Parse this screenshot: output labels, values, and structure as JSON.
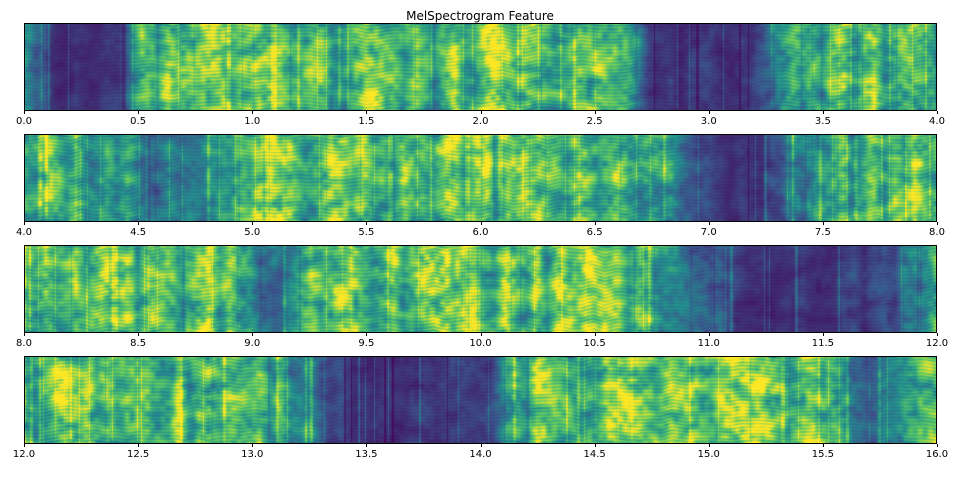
{
  "figure": {
    "title": "MelSpectrogram Feature",
    "background_color": "#ffffff",
    "axis_color": "#000000",
    "text_color": "#000000"
  },
  "chart_data": {
    "type": "heatmap",
    "title": "MelSpectrogram Feature",
    "subtitle": "",
    "xlabel": "",
    "ylabel": "",
    "x_unit": "seconds",
    "grid": false,
    "legend": "none",
    "colormap": "viridis",
    "colormap_stops": [
      0,
      0.25,
      0.5,
      0.75,
      1
    ],
    "colormap_colors": [
      "#440154",
      "#3b528b",
      "#21918c",
      "#5ec962",
      "#fde725"
    ],
    "panels": [
      {
        "x_range": [
          0.0,
          4.0
        ],
        "ticks": [
          "0.0",
          "0.5",
          "1.0",
          "1.5",
          "2.0",
          "2.5",
          "3.0",
          "3.5",
          "4.0"
        ],
        "seed": 101,
        "energy_envelope": [
          0.55,
          0.2,
          0.18,
          0.2,
          0.22,
          0.75,
          0.85,
          0.8,
          0.9,
          0.8,
          0.85,
          0.8,
          0.75,
          0.8,
          0.6,
          0.9,
          0.85,
          0.8,
          0.75,
          0.85,
          0.9,
          0.8,
          0.85,
          0.9,
          0.8,
          0.85,
          0.5,
          0.2,
          0.18,
          0.2,
          0.2,
          0.22,
          0.4,
          0.75,
          0.8,
          0.85,
          0.8,
          0.75,
          0.8,
          0.7
        ]
      },
      {
        "x_range": [
          4.0,
          8.0
        ],
        "ticks": [
          "4.0",
          "4.5",
          "5.0",
          "5.5",
          "6.0",
          "6.5",
          "7.0",
          "7.5",
          "8.0"
        ],
        "seed": 202,
        "energy_envelope": [
          0.8,
          0.85,
          0.8,
          0.75,
          0.7,
          0.55,
          0.45,
          0.4,
          0.5,
          0.75,
          0.9,
          0.85,
          0.8,
          0.85,
          0.9,
          0.8,
          0.75,
          0.8,
          0.85,
          0.9,
          0.85,
          0.8,
          0.85,
          0.8,
          0.75,
          0.8,
          0.7,
          0.6,
          0.5,
          0.3,
          0.2,
          0.2,
          0.25,
          0.5,
          0.8,
          0.85,
          0.8,
          0.75,
          0.85,
          0.8
        ]
      },
      {
        "x_range": [
          8.0,
          12.0
        ],
        "ticks": [
          "8.0",
          "8.5",
          "9.0",
          "9.5",
          "10.0",
          "10.5",
          "11.0",
          "11.5",
          "12.0"
        ],
        "seed": 303,
        "energy_envelope": [
          0.85,
          0.8,
          0.85,
          0.9,
          0.8,
          0.75,
          0.8,
          0.85,
          0.8,
          0.75,
          0.6,
          0.5,
          0.7,
          0.85,
          0.8,
          0.85,
          0.8,
          0.85,
          0.9,
          0.8,
          0.85,
          0.8,
          0.75,
          0.8,
          0.85,
          0.8,
          0.75,
          0.7,
          0.6,
          0.5,
          0.25,
          0.2,
          0.18,
          0.2,
          0.2,
          0.22,
          0.2,
          0.25,
          0.5,
          0.85
        ]
      },
      {
        "x_range": [
          12.0,
          16.0
        ],
        "ticks": [
          "12.0",
          "12.5",
          "13.0",
          "13.5",
          "14.0",
          "14.5",
          "15.0",
          "15.5",
          "16.0"
        ],
        "seed": 404,
        "energy_envelope": [
          0.8,
          0.85,
          0.8,
          0.75,
          0.8,
          0.85,
          0.8,
          0.75,
          0.7,
          0.75,
          0.8,
          0.7,
          0.5,
          0.25,
          0.2,
          0.18,
          0.2,
          0.2,
          0.22,
          0.2,
          0.3,
          0.7,
          0.85,
          0.8,
          0.75,
          0.9,
          0.95,
          0.8,
          0.75,
          0.8,
          0.95,
          0.9,
          0.8,
          0.75,
          0.8,
          0.7,
          0.4,
          0.5,
          0.8,
          0.85
        ]
      }
    ]
  }
}
